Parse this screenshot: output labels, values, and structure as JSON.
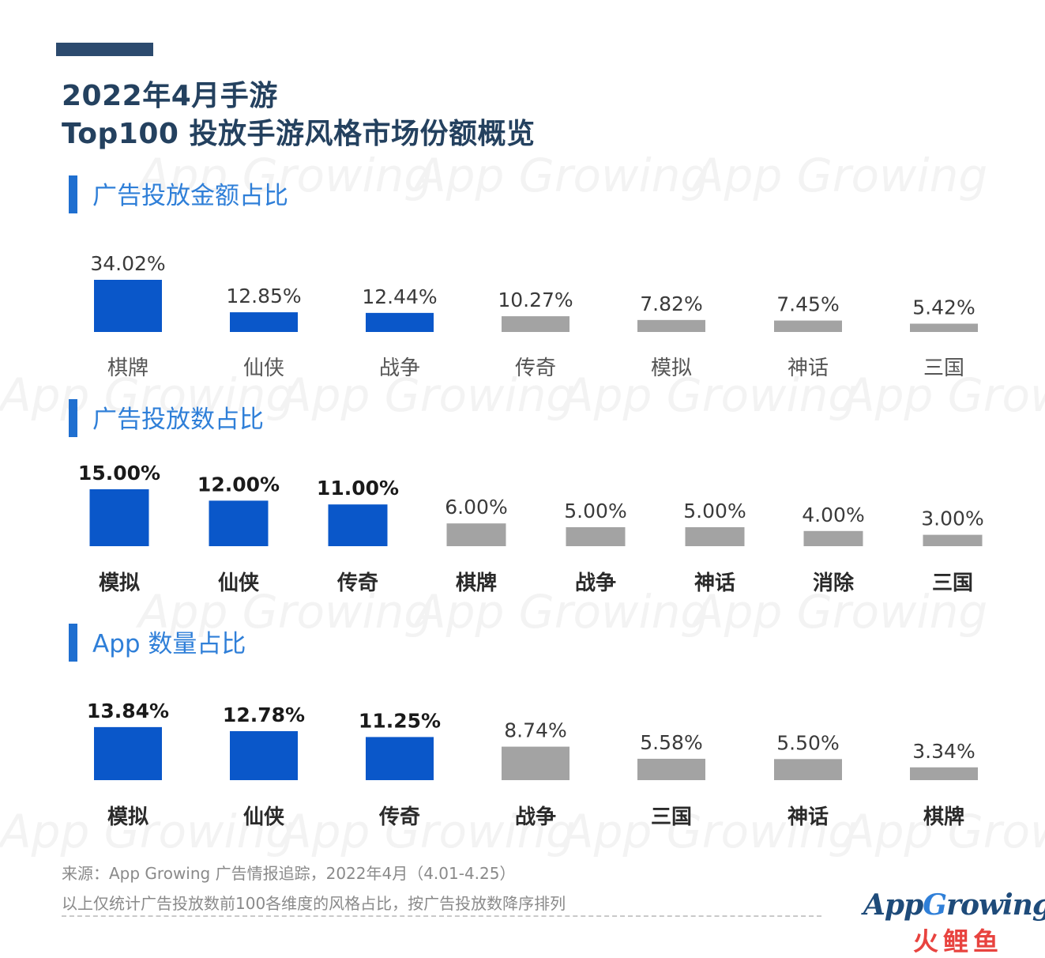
{
  "title_line1": "2022年4月手游",
  "title_line2": "Top100 投放手游风格市场份额概览",
  "watermark": "App Growing",
  "colors": {
    "highlight": "#0a57c9",
    "other": "#a3a3a3",
    "title": "#24415f",
    "section": "#2f7fd8"
  },
  "chart_data": [
    {
      "type": "bar",
      "title": "广告投放金额占比",
      "categories": [
        "棋牌",
        "仙侠",
        "战争",
        "传奇",
        "模拟",
        "神话",
        "三国"
      ],
      "values": [
        34.02,
        12.85,
        12.44,
        10.27,
        7.82,
        7.45,
        5.42
      ],
      "labels": [
        "34.02%",
        "12.85%",
        "12.44%",
        "10.27%",
        "7.82%",
        "7.45%",
        "5.42%"
      ],
      "highlight_count": 3,
      "bold": false
    },
    {
      "type": "bar",
      "title": "广告投放数占比",
      "categories": [
        "模拟",
        "仙侠",
        "传奇",
        "棋牌",
        "战争",
        "神话",
        "消除",
        "三国"
      ],
      "values": [
        15.0,
        12.0,
        11.0,
        6.0,
        5.0,
        5.0,
        4.0,
        3.0
      ],
      "labels": [
        "15.00%",
        "12.00%",
        "11.00%",
        "6.00%",
        "5.00%",
        "5.00%",
        "4.00%",
        "3.00%"
      ],
      "highlight_count": 3,
      "bold": true
    },
    {
      "type": "bar",
      "title": "App 数量占比",
      "categories": [
        "模拟",
        "仙侠",
        "传奇",
        "战争",
        "三国",
        "神话",
        "棋牌"
      ],
      "values": [
        13.84,
        12.78,
        11.25,
        8.74,
        5.58,
        5.5,
        3.34
      ],
      "labels": [
        "13.84%",
        "12.78%",
        "11.25%",
        "8.74%",
        "5.58%",
        "5.50%",
        "3.34%"
      ],
      "highlight_count": 3,
      "bold": true
    }
  ],
  "footer": {
    "source": "来源：App Growing 广告情报追踪，2022年4月（4.01-4.25）",
    "note": "以上仅统计广告投放数前100各维度的风格占比，按广告投放数降序排列"
  },
  "logo": {
    "app": "App",
    "g": "G",
    "rowing": "rowing",
    "sub": "火鲤鱼"
  }
}
